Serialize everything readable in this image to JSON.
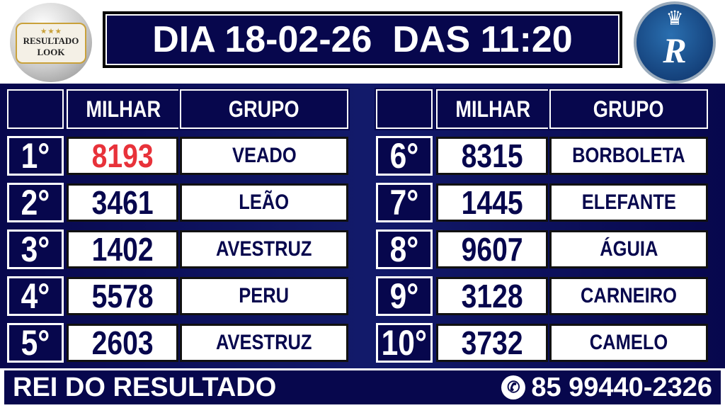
{
  "header": {
    "title": "DIA 18-02-26  DAS 11:20"
  },
  "logos": {
    "left": "RESULTADO LOOK",
    "right": "Rei R"
  },
  "columns": {
    "milhar": "MILHAR",
    "grupo": "GRUPO"
  },
  "results_left": [
    {
      "place": "1°",
      "milhar": "8193",
      "grupo": "VEADO",
      "highlight": true
    },
    {
      "place": "2°",
      "milhar": "3461",
      "grupo": "LEÃO"
    },
    {
      "place": "3°",
      "milhar": "1402",
      "grupo": "AVESTRUZ"
    },
    {
      "place": "4°",
      "milhar": "5578",
      "grupo": "PERU"
    },
    {
      "place": "5°",
      "milhar": "2603",
      "grupo": "AVESTRUZ"
    }
  ],
  "results_right": [
    {
      "place": "6°",
      "milhar": "8315",
      "grupo": "BORBOLETA"
    },
    {
      "place": "7°",
      "milhar": "1445",
      "grupo": "ELEFANTE"
    },
    {
      "place": "8°",
      "milhar": "9607",
      "grupo": "ÁGUIA"
    },
    {
      "place": "9°",
      "milhar": "3128",
      "grupo": "CARNEIRO"
    },
    {
      "place": "10°",
      "milhar": "3732",
      "grupo": "CAMELO"
    }
  ],
  "footer": {
    "brand": "REI DO RESULTADO",
    "phone": "85 99440-2326",
    "phone_icon": "whatsapp-icon"
  },
  "colors": {
    "navy": "#07074d",
    "highlight": "#e8323a"
  }
}
